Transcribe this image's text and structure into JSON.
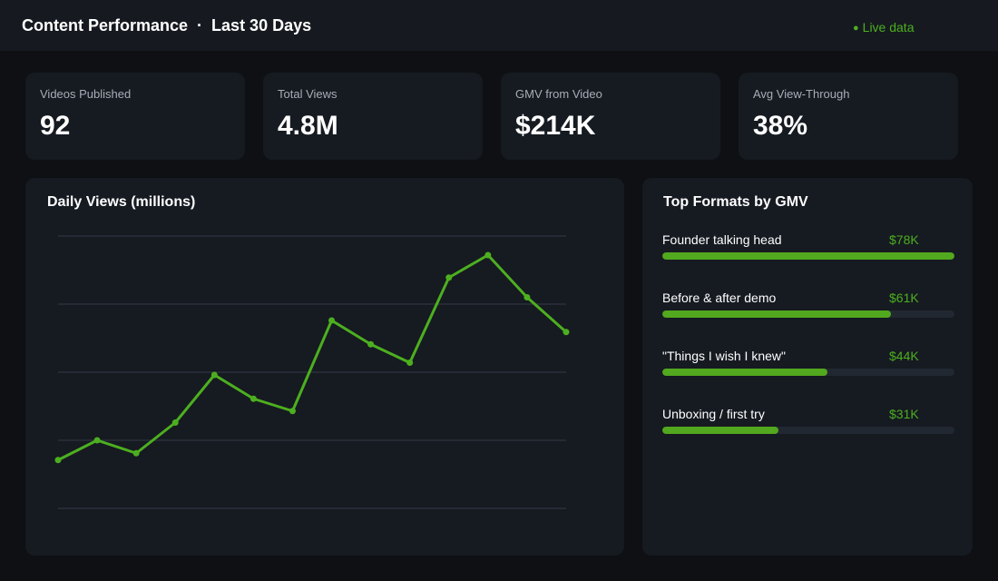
{
  "header": {
    "title_left": "Content Performance",
    "title_sep": "·",
    "title_right": "Last 30 Days",
    "live_icon": "●",
    "live_label": "Live data"
  },
  "colors": {
    "accent": "#4caf1f",
    "background": "#0e1013",
    "card": "#161a21",
    "gridline": "#2a303a"
  },
  "kpis": [
    {
      "label": "Videos Published",
      "value": "92"
    },
    {
      "label": "Total Views",
      "value": "4.8M"
    },
    {
      "label": "GMV from Video",
      "value": "$214K"
    },
    {
      "label": "Avg View-Through",
      "value": "38%"
    }
  ],
  "chart": {
    "title": "Daily Views (millions)"
  },
  "chart_data": {
    "type": "line",
    "title": "Daily Views (millions)",
    "xlabel": "",
    "ylabel": "",
    "x": [
      1,
      2,
      3,
      4,
      5,
      6,
      7,
      8,
      9,
      10,
      11,
      12,
      13,
      14
    ],
    "series": [
      {
        "values": [
          0.71,
          1.0,
          0.81,
          1.26,
          1.96,
          1.61,
          1.43,
          2.76,
          2.41,
          2.14,
          3.39,
          3.72,
          3.1,
          2.59
        ]
      }
    ],
    "ylim": [
      0,
      4
    ],
    "grid": true,
    "legend": "none"
  },
  "formats": {
    "title": "Top Formats by GMV",
    "items": [
      {
        "label": "Founder talking head",
        "value": "$78K",
        "amount": 78
      },
      {
        "label": "Before & after demo",
        "value": "$61K",
        "amount": 61
      },
      {
        "label": "\"Things I wish I knew\"",
        "value": "$44K",
        "amount": 44
      },
      {
        "label": "Unboxing / first try",
        "value": "$31K",
        "amount": 31
      }
    ]
  }
}
